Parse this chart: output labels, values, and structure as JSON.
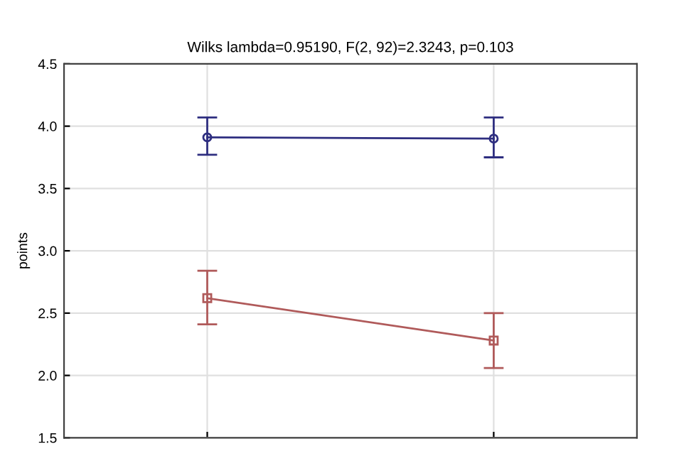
{
  "chart_data": {
    "type": "line",
    "title": "Wilks lambda=0.95190, F(2, 92)=2.3243, p=0.103",
    "ylabel": "points",
    "categories": [
      null,
      null
    ],
    "series": [
      {
        "color": "#2e2e80",
        "marker": "circle",
        "values": [
          3.91,
          3.9
        ],
        "errors": [
          [
            3.77,
            4.07
          ],
          [
            3.75,
            4.07
          ]
        ]
      },
      {
        "color": "#b05a5a",
        "marker": "square",
        "values": [
          2.62,
          2.28
        ],
        "errors": [
          [
            2.41,
            2.84
          ],
          [
            2.06,
            2.5
          ]
        ]
      }
    ],
    "ylim": [
      1.5,
      4.5
    ],
    "yticks": [
      {
        "value": 1.5,
        "label": "1.5"
      },
      {
        "value": 2.0,
        "label": "2.0"
      },
      {
        "value": 2.5,
        "label": "2.5"
      },
      {
        "value": 3.0,
        "label": "3.0"
      },
      {
        "value": 3.5,
        "label": "3.5"
      },
      {
        "value": 4.0,
        "label": "4.0"
      },
      {
        "value": 4.5,
        "label": "4.5"
      }
    ],
    "grid": true,
    "line_style": "solid"
  }
}
